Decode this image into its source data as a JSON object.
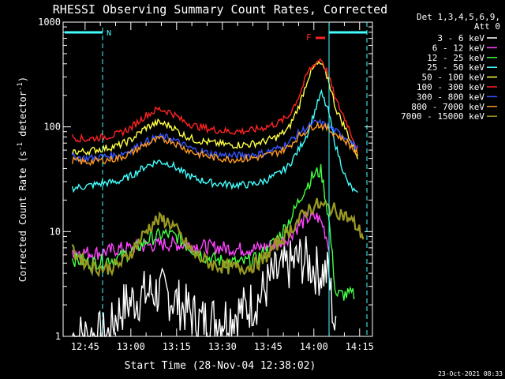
{
  "chart_data": {
    "type": "line",
    "title": "RHESSI Observing Summary Count Rates, Corrected",
    "xlabel": "Start Time (28-Nov-04 12:38:02)",
    "ylabel": "Corrected Count Rate (s⁻¹ detector⁻¹)",
    "ylabel_prefix": "Corrected Count Rate (s",
    "ylabel_mid": " detector",
    "ylabel_suffix": ")",
    "ylabel_sup": "-1",
    "yscale": "log",
    "ylim": [
      1,
      1000
    ],
    "xlim_minutes": [
      12.63,
      14.32
    ],
    "xticks": [
      "12:45",
      "13:00",
      "13:15",
      "13:30",
      "13:45",
      "14:00",
      "14:15"
    ],
    "yticks": [
      "1",
      "10",
      "100",
      "1000"
    ],
    "legend_placement": "right",
    "legend_header": [
      "Det 1,3,4,5,6,9,",
      "Att 0"
    ],
    "footer_date": "23-Oct-2021 08:33",
    "flags": {
      "N": "N",
      "F": "F"
    },
    "series": [
      {
        "name": "3 - 6 keV",
        "color": "#ffffff",
        "points": [
          [
            12.68,
            1
          ],
          [
            12.88,
            1
          ],
          [
            12.92,
            1.6
          ],
          [
            12.97,
            2.0
          ],
          [
            13.05,
            2.4
          ],
          [
            13.12,
            2.7
          ],
          [
            13.2,
            2.5
          ],
          [
            13.27,
            2.0
          ],
          [
            13.38,
            1.4
          ],
          [
            13.5,
            1.5
          ],
          [
            13.62,
            1.8
          ],
          [
            13.7,
            2.3
          ],
          [
            13.77,
            3.6
          ],
          [
            13.85,
            4.5
          ],
          [
            13.92,
            5.5
          ],
          [
            13.97,
            5.0
          ],
          [
            14.02,
            4.2
          ],
          [
            14.08,
            4.0
          ],
          [
            14.12,
            1
          ]
        ]
      },
      {
        "name": "6 - 12 keV",
        "color": "#ff44ff",
        "points": [
          [
            12.68,
            6.5
          ],
          [
            12.8,
            6.2
          ],
          [
            12.88,
            6.5
          ],
          [
            12.92,
            6.8
          ],
          [
            13.0,
            7.0
          ],
          [
            13.1,
            7.4
          ],
          [
            13.2,
            7.6
          ],
          [
            13.3,
            7.5
          ],
          [
            13.4,
            7.2
          ],
          [
            13.5,
            7.0
          ],
          [
            13.6,
            6.8
          ],
          [
            13.7,
            6.9
          ],
          [
            13.78,
            7.5
          ],
          [
            13.85,
            8.5
          ],
          [
            13.92,
            11.5
          ],
          [
            13.97,
            13.5
          ],
          [
            14.02,
            13.8
          ],
          [
            14.05,
            11.5
          ],
          [
            14.08,
            7.5
          ]
        ]
      },
      {
        "name": "12 - 25 keV",
        "color": "#44ff44",
        "points": [
          [
            12.68,
            5.5
          ],
          [
            12.78,
            5.0
          ],
          [
            12.88,
            5.4
          ],
          [
            12.93,
            5.6
          ],
          [
            13.0,
            6.3
          ],
          [
            13.1,
            8.5
          ],
          [
            13.18,
            9.5
          ],
          [
            13.25,
            9.0
          ],
          [
            13.3,
            7.5
          ],
          [
            13.4,
            5.8
          ],
          [
            13.5,
            5.2
          ],
          [
            13.6,
            5.0
          ],
          [
            13.68,
            5.4
          ],
          [
            13.75,
            6.8
          ],
          [
            13.82,
            9.5
          ],
          [
            13.88,
            14
          ],
          [
            13.94,
            24
          ],
          [
            14.0,
            35
          ],
          [
            14.04,
            38
          ],
          [
            14.08,
            14
          ],
          [
            14.12,
            2.5
          ],
          [
            14.22,
            2.5
          ]
        ]
      },
      {
        "name": "25 - 50 keV",
        "color": "#44ffff",
        "points": [
          [
            12.68,
            26
          ],
          [
            12.75,
            27
          ],
          [
            12.85,
            29
          ],
          [
            12.93,
            30
          ],
          [
            13.0,
            34
          ],
          [
            13.08,
            42
          ],
          [
            13.15,
            47
          ],
          [
            13.22,
            44
          ],
          [
            13.28,
            37
          ],
          [
            13.35,
            32
          ],
          [
            13.45,
            29
          ],
          [
            13.55,
            28
          ],
          [
            13.65,
            28
          ],
          [
            13.72,
            30
          ],
          [
            13.8,
            35
          ],
          [
            13.86,
            42
          ],
          [
            13.92,
            62
          ],
          [
            13.97,
            90
          ],
          [
            14.01,
            150
          ],
          [
            14.04,
            210
          ],
          [
            14.08,
            140
          ],
          [
            14.12,
            65
          ],
          [
            14.18,
            30
          ],
          [
            14.24,
            22
          ]
        ]
      },
      {
        "name": "50 - 100 keV",
        "color": "#ffff44",
        "points": [
          [
            12.68,
            58
          ],
          [
            12.75,
            58
          ],
          [
            12.85,
            62
          ],
          [
            12.93,
            66
          ],
          [
            13.0,
            75
          ],
          [
            13.08,
            98
          ],
          [
            13.15,
            110
          ],
          [
            13.22,
            102
          ],
          [
            13.28,
            85
          ],
          [
            13.35,
            75
          ],
          [
            13.45,
            70
          ],
          [
            13.55,
            67
          ],
          [
            13.65,
            68
          ],
          [
            13.72,
            72
          ],
          [
            13.8,
            80
          ],
          [
            13.86,
            95
          ],
          [
            13.92,
            160
          ],
          [
            13.97,
            300
          ],
          [
            14.01,
            390
          ],
          [
            14.04,
            400
          ],
          [
            14.08,
            280
          ],
          [
            14.12,
            150
          ],
          [
            14.18,
            90
          ],
          [
            14.24,
            52
          ]
        ]
      },
      {
        "name": "100 - 300 keV",
        "color": "#ff2222",
        "points": [
          [
            12.68,
            80
          ],
          [
            12.75,
            76
          ],
          [
            12.85,
            80
          ],
          [
            12.93,
            85
          ],
          [
            13.0,
            98
          ],
          [
            13.08,
            128
          ],
          [
            13.15,
            148
          ],
          [
            13.22,
            138
          ],
          [
            13.28,
            115
          ],
          [
            13.35,
            102
          ],
          [
            13.45,
            94
          ],
          [
            13.55,
            90
          ],
          [
            13.65,
            92
          ],
          [
            13.72,
            98
          ],
          [
            13.8,
            108
          ],
          [
            13.86,
            125
          ],
          [
            13.92,
            200
          ],
          [
            13.97,
            340
          ],
          [
            14.01,
            410
          ],
          [
            14.04,
            450
          ],
          [
            14.08,
            310
          ],
          [
            14.12,
            180
          ],
          [
            14.18,
            110
          ],
          [
            14.24,
            60
          ]
        ]
      },
      {
        "name": "300 - 800 keV",
        "color": "#3355ff",
        "points": [
          [
            12.68,
            52
          ],
          [
            12.75,
            50
          ],
          [
            12.85,
            52
          ],
          [
            12.93,
            54
          ],
          [
            13.0,
            60
          ],
          [
            13.08,
            72
          ],
          [
            13.15,
            80
          ],
          [
            13.22,
            78
          ],
          [
            13.28,
            68
          ],
          [
            13.35,
            60
          ],
          [
            13.45,
            55
          ],
          [
            13.55,
            53
          ],
          [
            13.65,
            54
          ],
          [
            13.72,
            56
          ],
          [
            13.8,
            62
          ],
          [
            13.86,
            70
          ],
          [
            13.92,
            88
          ],
          [
            13.97,
            100
          ],
          [
            14.01,
            110
          ],
          [
            14.04,
            108
          ],
          [
            14.08,
            100
          ],
          [
            14.12,
            90
          ],
          [
            14.18,
            78
          ],
          [
            14.24,
            62
          ]
        ]
      },
      {
        "name": "800 - 7000 keV",
        "color": "#ff9922",
        "points": [
          [
            12.68,
            48
          ],
          [
            12.75,
            46
          ],
          [
            12.85,
            48
          ],
          [
            12.93,
            50
          ],
          [
            13.0,
            56
          ],
          [
            13.08,
            68
          ],
          [
            13.15,
            76
          ],
          [
            13.22,
            74
          ],
          [
            13.28,
            64
          ],
          [
            13.35,
            56
          ],
          [
            13.45,
            51
          ],
          [
            13.55,
            49
          ],
          [
            13.65,
            50
          ],
          [
            13.72,
            52
          ],
          [
            13.8,
            57
          ],
          [
            13.86,
            64
          ],
          [
            13.92,
            82
          ],
          [
            13.97,
            95
          ],
          [
            14.01,
            105
          ],
          [
            14.04,
            103
          ],
          [
            14.08,
            95
          ],
          [
            14.12,
            85
          ],
          [
            14.18,
            72
          ],
          [
            14.24,
            55
          ]
        ]
      },
      {
        "name": "7000 - 15000 keV",
        "color": "#999922",
        "points": [
          [
            12.68,
            6.5
          ],
          [
            12.73,
            5.5
          ],
          [
            12.8,
            4.5
          ],
          [
            12.88,
            4.5
          ],
          [
            12.95,
            5.0
          ],
          [
            13.02,
            7.0
          ],
          [
            13.08,
            10
          ],
          [
            13.13,
            12.5
          ],
          [
            13.18,
            13.0
          ],
          [
            13.23,
            11.5
          ],
          [
            13.28,
            8.5
          ],
          [
            13.35,
            6.0
          ],
          [
            13.45,
            4.8
          ],
          [
            13.55,
            4.5
          ],
          [
            13.65,
            4.6
          ],
          [
            13.72,
            5.3
          ],
          [
            13.78,
            7.0
          ],
          [
            13.85,
            9.5
          ],
          [
            13.92,
            13
          ],
          [
            13.97,
            16.5
          ],
          [
            14.02,
            18
          ],
          [
            14.08,
            17
          ],
          [
            14.15,
            15
          ],
          [
            14.22,
            12
          ],
          [
            14.27,
            9
          ]
        ]
      }
    ]
  }
}
